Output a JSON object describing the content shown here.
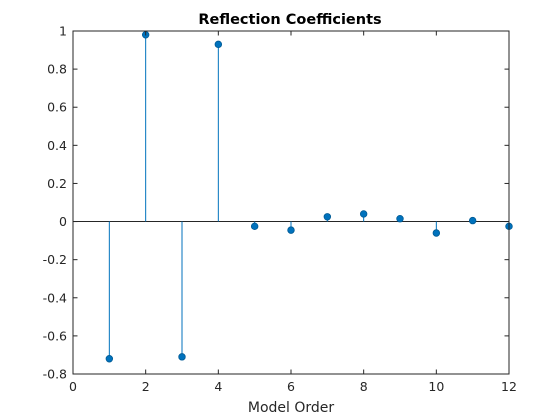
{
  "chart_data": {
    "type": "stem",
    "title": "Reflection Coefficients",
    "xlabel": "Model Order",
    "ylabel": "",
    "xlim": [
      0,
      12
    ],
    "ylim": [
      -0.8,
      1
    ],
    "xticks": [
      0,
      2,
      4,
      6,
      8,
      10,
      12
    ],
    "yticks": [
      -0.8,
      -0.6,
      -0.4,
      -0.2,
      0,
      0.2,
      0.4,
      0.6,
      0.8,
      1
    ],
    "xtick_labels": [
      "0",
      "2",
      "4",
      "6",
      "8",
      "10",
      "12"
    ],
    "ytick_labels": [
      "-0.8",
      "-0.6",
      "-0.4",
      "-0.2",
      "0",
      "0.2",
      "0.4",
      "0.6",
      "0.8",
      "1"
    ],
    "grid": false,
    "box": true,
    "baseline": 0,
    "x": [
      1,
      2,
      3,
      4,
      5,
      6,
      7,
      8,
      9,
      10,
      11,
      12
    ],
    "y": [
      -0.72,
      0.98,
      -0.71,
      0.93,
      -0.025,
      -0.045,
      0.025,
      0.04,
      0.015,
      -0.06,
      0.005,
      -0.025
    ],
    "color": "#0072bd"
  }
}
